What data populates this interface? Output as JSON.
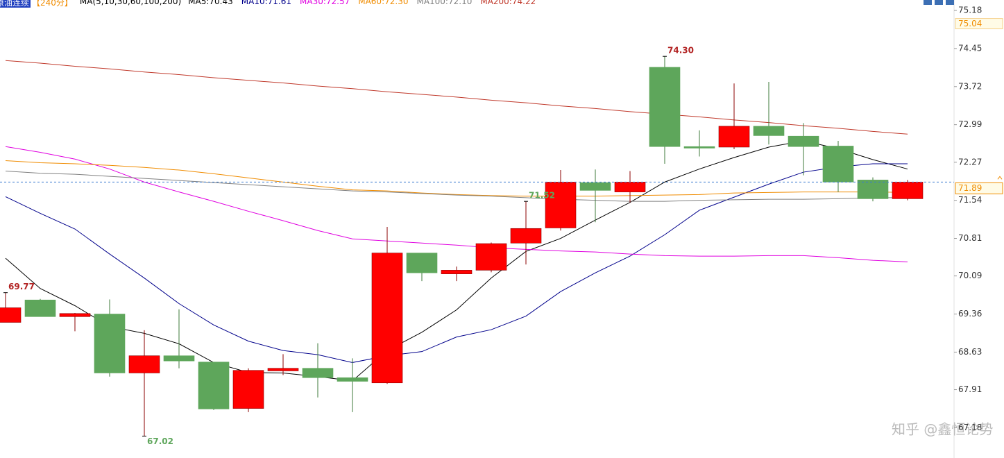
{
  "chart_data": {
    "type": "candlestick",
    "title": "原油连续",
    "period": "【240分】",
    "indicator": "MA(5,10,30,60,100,200)",
    "categories": [
      null,
      null,
      null,
      null,
      null,
      null,
      null,
      null,
      null,
      null,
      null,
      null,
      null,
      null,
      null,
      null,
      null,
      null,
      null,
      null,
      null,
      null,
      null,
      null,
      null,
      null,
      null
    ],
    "open": [
      69.2,
      69.63,
      69.31,
      69.36,
      68.23,
      68.56,
      68.44,
      67.55,
      68.27,
      68.32,
      68.14,
      68.04,
      70.53,
      70.13,
      70.2,
      70.72,
      71.01,
      71.88,
      71.7,
      74.09,
      72.57,
      72.56,
      72.96,
      72.77,
      72.58,
      71.93,
      71.57
    ],
    "high": [
      69.77,
      69.65,
      69.38,
      69.64,
      69.05,
      69.45,
      68.44,
      68.32,
      68.59,
      68.8,
      68.51,
      71.03,
      70.53,
      70.27,
      70.73,
      71.52,
      72.12,
      72.13,
      72.1,
      74.3,
      72.88,
      73.78,
      73.81,
      73.02,
      72.68,
      71.98,
      71.93
    ],
    "low": [
      69.2,
      69.31,
      69.03,
      68.16,
      67.02,
      68.32,
      67.52,
      67.48,
      68.19,
      67.76,
      67.48,
      68.02,
      69.99,
      69.99,
      70.16,
      70.31,
      70.96,
      71.12,
      71.5,
      72.24,
      72.38,
      72.52,
      72.61,
      72.02,
      71.7,
      71.52,
      71.54
    ],
    "close": [
      69.48,
      69.31,
      69.37,
      68.23,
      68.56,
      68.46,
      67.54,
      68.28,
      68.32,
      68.14,
      68.07,
      70.53,
      70.15,
      70.2,
      70.71,
      71.0,
      71.89,
      71.73,
      71.89,
      72.57,
      72.54,
      72.96,
      72.78,
      72.57,
      71.89,
      71.57,
      71.89
    ],
    "up_color": "#ff0000",
    "down_color": "#5ea65b",
    "series": [
      {
        "name": "MA5:70.43",
        "color": "#000000",
        "values": [
          70.43,
          69.85,
          69.52,
          69.12,
          68.99,
          68.79,
          68.43,
          68.24,
          68.23,
          68.16,
          68.08,
          68.66,
          69.01,
          69.44,
          70.05,
          70.56,
          70.81,
          71.16,
          71.5,
          71.89,
          72.14,
          72.36,
          72.56,
          72.68,
          72.53,
          72.32,
          72.14
        ]
      },
      {
        "name": "MA10:71.61",
        "color": "#00008b",
        "values": [
          71.61,
          71.29,
          70.99,
          70.51,
          70.05,
          69.56,
          69.15,
          68.84,
          68.66,
          68.58,
          68.43,
          68.56,
          68.64,
          68.92,
          69.06,
          69.32,
          69.79,
          70.15,
          70.47,
          70.88,
          71.35,
          71.6,
          71.85,
          72.08,
          72.18,
          72.24,
          72.24
        ]
      },
      {
        "name": "MA30:72.57",
        "color": "#e000e0",
        "values": [
          72.57,
          72.46,
          72.33,
          72.14,
          71.89,
          71.7,
          71.52,
          71.33,
          71.15,
          70.96,
          70.8,
          70.76,
          70.72,
          70.68,
          70.63,
          70.6,
          70.57,
          70.55,
          70.51,
          70.48,
          70.47,
          70.47,
          70.48,
          70.48,
          70.44,
          70.39,
          70.36
        ]
      },
      {
        "name": "MA60:72.30",
        "color": "#f08c00",
        "values": [
          72.3,
          72.26,
          72.24,
          72.21,
          72.17,
          72.12,
          72.05,
          71.97,
          71.89,
          71.81,
          71.74,
          71.72,
          71.68,
          71.65,
          71.63,
          71.62,
          71.62,
          71.62,
          71.63,
          71.64,
          71.65,
          71.68,
          71.69,
          71.7,
          71.7,
          71.7,
          71.69
        ]
      },
      {
        "name": "MA100:72.10",
        "color": "#808080",
        "values": [
          72.1,
          72.06,
          72.04,
          72.0,
          71.96,
          71.92,
          71.88,
          71.84,
          71.8,
          71.76,
          71.72,
          71.7,
          71.67,
          71.64,
          71.62,
          71.59,
          71.56,
          71.54,
          71.52,
          71.52,
          71.54,
          71.55,
          71.56,
          71.56,
          71.57,
          71.59,
          71.59
        ]
      },
      {
        "name": "MA200:74.22",
        "color": "#c0392b",
        "values": [
          74.22,
          74.17,
          74.11,
          74.06,
          74.0,
          73.95,
          73.89,
          73.84,
          73.79,
          73.73,
          73.68,
          73.62,
          73.57,
          73.52,
          73.46,
          73.41,
          73.35,
          73.3,
          73.24,
          73.19,
          73.14,
          73.08,
          73.03,
          72.97,
          72.92,
          72.86,
          72.81
        ]
      }
    ],
    "ylim": [
      66.6,
      75.38
    ],
    "yticks": [
      75.18,
      74.45,
      73.72,
      72.99,
      72.27,
      71.54,
      70.81,
      70.09,
      69.36,
      68.63,
      67.91,
      67.18
    ],
    "last_price": 71.89,
    "marker_label": 75.04,
    "annotations": [
      {
        "value": 74.3,
        "label": "74.30",
        "color": "#b22222"
      },
      {
        "value": 71.52,
        "color": "#5ea65b"
      },
      {
        "value": 69.77,
        "color": "#b22222"
      },
      {
        "value": 67.02,
        "color": "#5ea65b"
      }
    ],
    "watermark": "知乎 @鑫恒论势"
  }
}
